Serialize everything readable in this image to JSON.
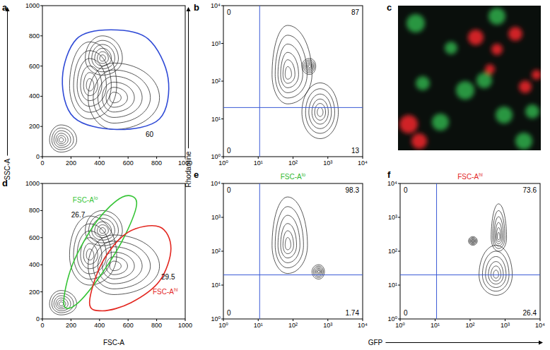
{
  "chart_data": [
    {
      "type": "contour",
      "panel": "a",
      "y_label": "SSC-A",
      "xlim": [
        0,
        1000
      ],
      "ylim": [
        0,
        1000
      ],
      "xticks": [
        0,
        200,
        400,
        600,
        800,
        1000
      ],
      "yticks": [
        0,
        200,
        400,
        600,
        800,
        1000
      ],
      "populations": [
        {
          "x": 130,
          "y": 110,
          "x_range": [
            50,
            240
          ],
          "y_range": [
            30,
            210
          ]
        },
        {
          "x": 330,
          "y": 470,
          "x_range": [
            190,
            520
          ],
          "y_range": [
            250,
            760
          ]
        },
        {
          "x": 500,
          "y": 390,
          "x_range": [
            320,
            820
          ],
          "y_range": [
            180,
            620
          ]
        },
        {
          "x": 420,
          "y": 650,
          "x_range": [
            300,
            560
          ],
          "y_range": [
            540,
            800
          ]
        }
      ],
      "gates": [
        {
          "value": 60,
          "color": "#2f4ad6",
          "x": [
            140,
            240,
            480,
            740,
            880,
            820,
            520,
            220
          ],
          "y": [
            520,
            780,
            840,
            780,
            520,
            250,
            180,
            260
          ]
        }
      ]
    },
    {
      "type": "contour",
      "panel": "b",
      "y_label": "Rhodamine",
      "log": true,
      "xlim": [
        1,
        10000
      ],
      "ylim": [
        1,
        10000
      ],
      "xticks": [
        {
          "value": 1,
          "label": "10⁰"
        },
        {
          "value": 10,
          "label": "10¹"
        },
        {
          "value": 100,
          "label": "10²"
        },
        {
          "value": 1000,
          "label": "10³"
        },
        {
          "value": 10000,
          "label": "10⁴"
        }
      ],
      "yticks": [
        {
          "value": 1,
          "label": "10⁰"
        },
        {
          "value": 10,
          "label": "10¹"
        },
        {
          "value": 100,
          "label": "10²"
        },
        {
          "value": 1000,
          "label": "10³"
        },
        {
          "value": 10000,
          "label": "10⁴"
        }
      ],
      "populations": [
        {
          "x": 70,
          "y": 150,
          "x_range": [
            25,
            350
          ],
          "y_range": [
            25,
            3000
          ]
        },
        {
          "x": 600,
          "y": 15,
          "x_range": [
            180,
            2000
          ],
          "y_range": [
            3,
            90
          ]
        },
        {
          "x": 300,
          "y": 250,
          "x_range": [
            180,
            450
          ],
          "y_range": [
            150,
            400
          ]
        }
      ],
      "quadrants": {
        "x": 11,
        "y": 20,
        "color": "#3b5bd6",
        "values": [
          0,
          87,
          0,
          13
        ]
      }
    },
    {
      "type": "contour",
      "panel": "d",
      "x_label": "FSC-A",
      "xlim": [
        0,
        1000
      ],
      "ylim": [
        0,
        1000
      ],
      "xticks": [
        0,
        200,
        400,
        600,
        800,
        1000
      ],
      "yticks": [
        0,
        200,
        400,
        600,
        800,
        1000
      ],
      "populations": [
        {
          "x": 130,
          "y": 110,
          "x_range": [
            50,
            240
          ],
          "y_range": [
            30,
            210
          ]
        },
        {
          "x": 330,
          "y": 470,
          "x_range": [
            190,
            520
          ],
          "y_range": [
            250,
            760
          ]
        },
        {
          "x": 500,
          "y": 390,
          "x_range": [
            320,
            820
          ],
          "y_range": [
            180,
            620
          ]
        },
        {
          "x": 420,
          "y": 650,
          "x_range": [
            300,
            560
          ],
          "y_range": [
            540,
            800
          ]
        }
      ],
      "gates": [
        {
          "name": "FSC-A",
          "name_sup": "lo",
          "value": 26.7,
          "color": "#35c435",
          "x": [
            150,
            210,
            380,
            560,
            660,
            580,
            420,
            240
          ],
          "y": [
            110,
            400,
            720,
            900,
            860,
            620,
            340,
            110
          ]
        },
        {
          "name": "FSC-A",
          "name_sup": "hi",
          "value": 29.5,
          "color": "#e3261f",
          "x": [
            330,
            420,
            600,
            820,
            900,
            820,
            620,
            420
          ],
          "y": [
            120,
            420,
            640,
            680,
            520,
            280,
            120,
            60
          ]
        }
      ]
    },
    {
      "type": "contour",
      "panel": "e",
      "x_label": "GFP",
      "log": true,
      "title": {
        "text": "FSC-A",
        "sup": "lo",
        "color": "#2fb82f"
      },
      "xlim": [
        1,
        10000
      ],
      "ylim": [
        1,
        10000
      ],
      "xticks": [
        {
          "value": 1,
          "label": "10⁰"
        },
        {
          "value": 10,
          "label": "10¹"
        },
        {
          "value": 100,
          "label": "10²"
        },
        {
          "value": 1000,
          "label": "10³"
        },
        {
          "value": 10000,
          "label": "10⁴"
        }
      ],
      "yticks": [
        {
          "value": 1,
          "label": "10⁰"
        },
        {
          "value": 10,
          "label": "10¹"
        },
        {
          "value": 100,
          "label": "10²"
        },
        {
          "value": 1000,
          "label": "10³"
        },
        {
          "value": 10000,
          "label": "10⁴"
        }
      ],
      "populations": [
        {
          "x": 70,
          "y": 150,
          "x_range": [
            25,
            260
          ],
          "y_range": [
            22,
            4000
          ]
        },
        {
          "x": 550,
          "y": 25,
          "x_range": [
            350,
            800
          ],
          "y_range": [
            15,
            40
          ]
        }
      ],
      "quadrants": {
        "x": 11,
        "y": 20,
        "color": "#3b5bd6",
        "values": [
          0,
          98.3,
          0,
          1.74
        ]
      }
    },
    {
      "type": "contour",
      "panel": "f",
      "log": true,
      "title": {
        "text": "FSC-A",
        "sup": "hi",
        "color": "#e3261f"
      },
      "xlim": [
        1,
        10000
      ],
      "ylim": [
        1,
        10000
      ],
      "xticks": [
        {
          "value": 1,
          "label": "10⁰"
        },
        {
          "value": 10,
          "label": "10¹"
        },
        {
          "value": 100,
          "label": "10²"
        },
        {
          "value": 1000,
          "label": "10³"
        },
        {
          "value": 10000,
          "label": "10⁴"
        }
      ],
      "yticks": [
        {
          "value": 1,
          "label": "10⁰"
        },
        {
          "value": 10,
          "label": "10¹"
        },
        {
          "value": 100,
          "label": "10²"
        },
        {
          "value": 1000,
          "label": "10³"
        },
        {
          "value": 10000,
          "label": "10⁴"
        }
      ],
      "populations": [
        {
          "x": 550,
          "y": 20,
          "x_range": [
            180,
            1600
          ],
          "y_range": [
            5,
            150
          ]
        },
        {
          "x": 650,
          "y": 250,
          "x_range": [
            400,
            1100
          ],
          "y_range": [
            100,
            2500
          ]
        },
        {
          "x": 120,
          "y": 200,
          "x_range": [
            90,
            160
          ],
          "y_range": [
            150,
            270
          ]
        }
      ],
      "quadrants": {
        "x": 11,
        "y": 20,
        "color": "#3b5bd6",
        "values": [
          0,
          73.6,
          0,
          26.4
        ]
      }
    }
  ],
  "image": {
    "panel": "c"
  }
}
